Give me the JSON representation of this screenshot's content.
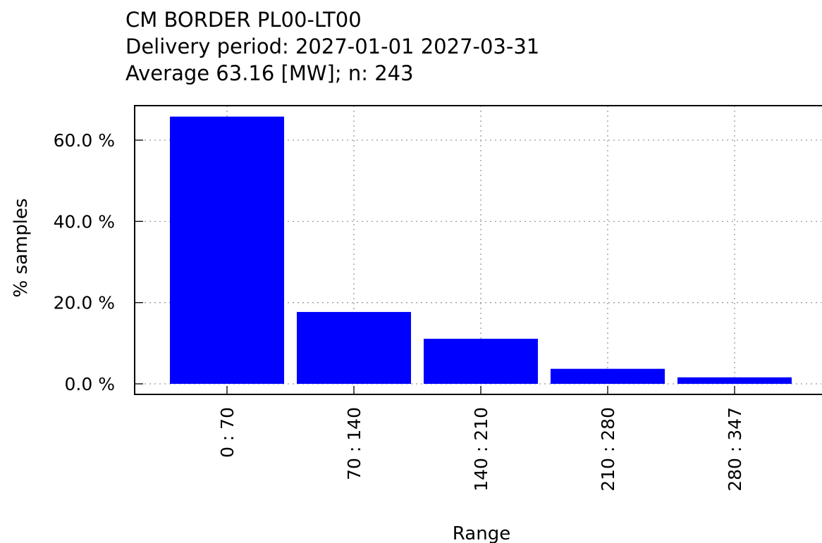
{
  "chart_data": {
    "type": "bar",
    "title": "CM BORDER PL00-LT00",
    "subtitle": [
      "Delivery period: 2027-01-01 2027-03-31",
      "Average 63.16 [MW]; n: 243"
    ],
    "x_label": "Range",
    "y_label": "% samples",
    "categories": [
      "0 : 70",
      "70 : 140",
      "140 : 210",
      "210 : 280",
      "280 : 347"
    ],
    "values": [
      65.8,
      17.7,
      11.1,
      3.7,
      1.6
    ],
    "color": "#0000ff",
    "ylim": [
      -2.6,
      68.5
    ],
    "yticks": [
      {
        "value": 0,
        "label": "0.0 %"
      },
      {
        "value": 20,
        "label": "20.0 %"
      },
      {
        "value": 40,
        "label": "40.0 %"
      },
      {
        "value": 60,
        "label": "60.0 %"
      }
    ],
    "grid": true
  }
}
